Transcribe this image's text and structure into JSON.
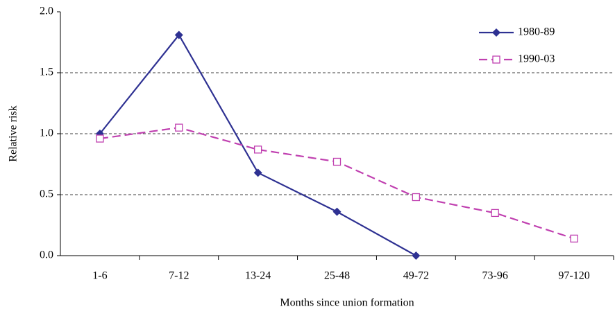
{
  "chart_data": {
    "type": "line",
    "x_label": "Months since union formation",
    "y_label": "Relative risk",
    "categories": [
      "1-6",
      "7-12",
      "13-24",
      "25-48",
      "49-72",
      "73-96",
      "97-120"
    ],
    "series": [
      {
        "name": "1980-89",
        "color": "#2e3192",
        "marker": "diamond",
        "dash": false,
        "values": [
          1.0,
          1.81,
          0.68,
          0.36,
          0.0,
          null,
          null
        ]
      },
      {
        "name": "1990-03",
        "color": "#c040b0",
        "marker": "square",
        "dash": true,
        "values": [
          0.96,
          1.05,
          0.87,
          0.77,
          0.48,
          0.35,
          0.14
        ]
      }
    ],
    "ylim": [
      0,
      2
    ],
    "yticks": [
      {
        "value": 0,
        "label": "0.0"
      },
      {
        "value": 0.5,
        "label": "0.5"
      },
      {
        "value": 1,
        "label": "1.0"
      },
      {
        "value": 1.5,
        "label": "1.5"
      },
      {
        "value": 2,
        "label": "2.0"
      }
    ],
    "grid": true,
    "legend": "top-right"
  }
}
